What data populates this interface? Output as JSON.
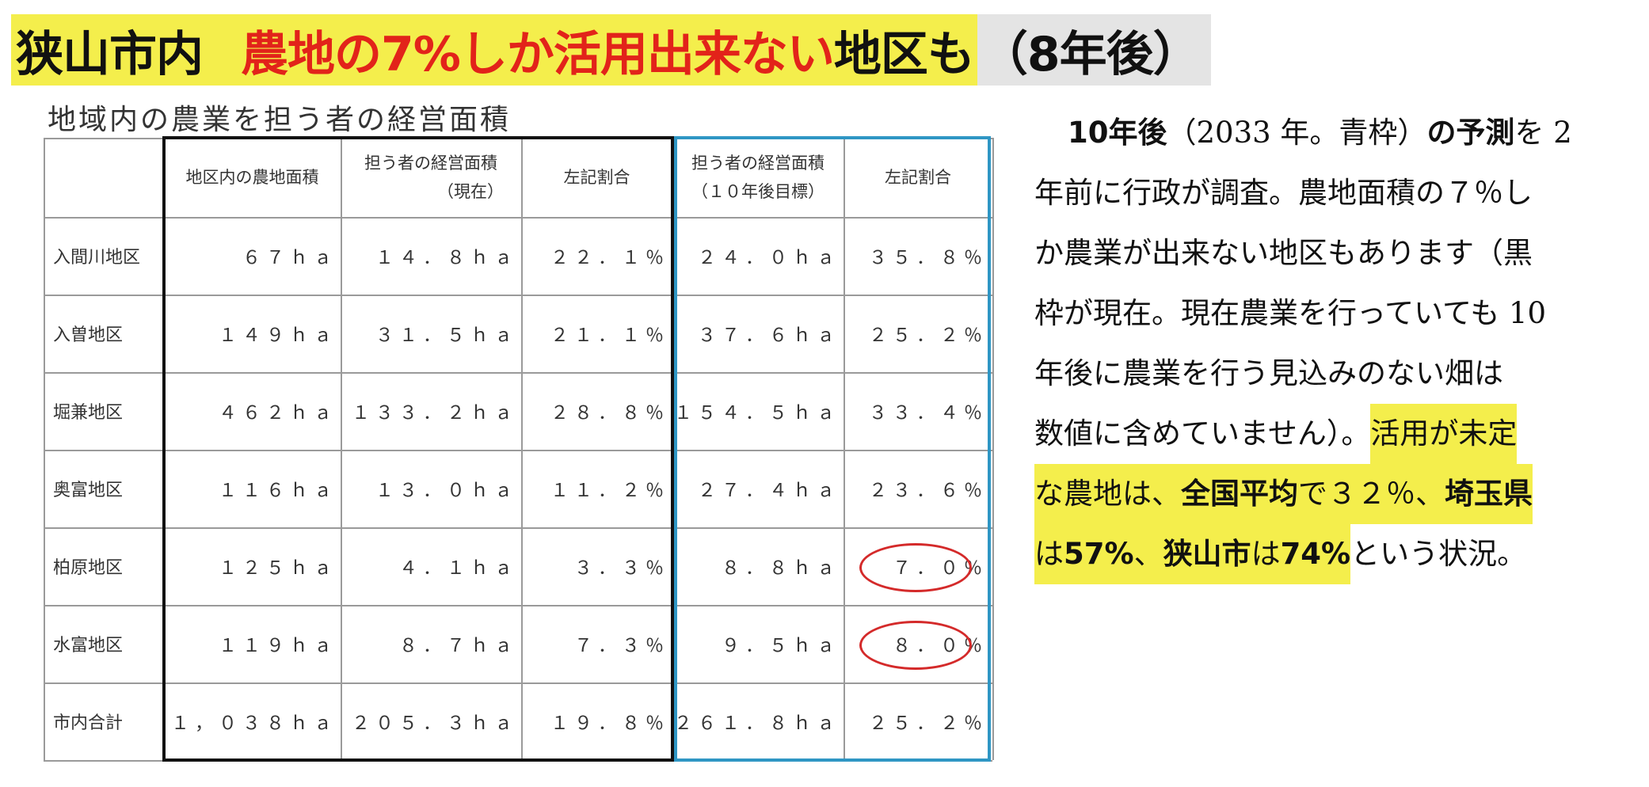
{
  "headline": {
    "part1": "狭山市内",
    "part2": "農地の7%しか活用出来ない",
    "part3": "地区も",
    "part4": "（8年後）",
    "colors": {
      "yellow": "#f4ee4c",
      "red": "#e2231a",
      "grey": "#e4e4e4"
    }
  },
  "table": {
    "title": "地域内の農業を担う者の経営面積",
    "headers": {
      "farmland": "地区内の農地面積",
      "current_area_line1": "担う者の経営面積",
      "current_area_line2": "（現在）",
      "current_ratio": "左記割合",
      "target_area_line1": "担う者の経営面積",
      "target_area_line2": "（１０年後目標）",
      "target_ratio": "左記割合"
    },
    "rows": [
      {
        "district": "入間川地区",
        "farmland": "６７ｈａ",
        "current_area": "１４．８ｈａ",
        "current_ratio": "２２．１％",
        "target_area": "２４．０ｈａ",
        "target_ratio": "３５．８％"
      },
      {
        "district": "入曽地区",
        "farmland": "１４９ｈａ",
        "current_area": "３１．５ｈａ",
        "current_ratio": "２１．１％",
        "target_area": "３７．６ｈａ",
        "target_ratio": "２５．２％"
      },
      {
        "district": "堀兼地区",
        "farmland": "４６２ｈａ",
        "current_area": "１３３．２ｈａ",
        "current_ratio": "２８．８％",
        "target_area": "１５４．５ｈａ",
        "target_ratio": "３３．４％"
      },
      {
        "district": "奥富地区",
        "farmland": "１１６ｈａ",
        "current_area": "１３．０ｈａ",
        "current_ratio": "１１．２％",
        "target_area": "２７．４ｈａ",
        "target_ratio": "２３．６％"
      },
      {
        "district": "柏原地区",
        "farmland": "１２５ｈａ",
        "current_area": "４．１ｈａ",
        "current_ratio": "３．３％",
        "target_area": "８．８ｈａ",
        "target_ratio": "７．０％"
      },
      {
        "district": "水富地区",
        "farmland": "１１９ｈａ",
        "current_area": "８．７ｈａ",
        "current_ratio": "７．３％",
        "target_area": "９．５ｈａ",
        "target_ratio": "８．０％"
      },
      {
        "district": "市内合計",
        "farmland": "１，０３８ｈａ",
        "current_area": "２０５．３ｈａ",
        "current_ratio": "１９．８％",
        "target_area": "２６１．８ｈａ",
        "target_ratio": "２５．２％"
      }
    ],
    "box_colors": {
      "current": "#111111",
      "target": "#2f96c4",
      "circle": "#d42a2a"
    }
  },
  "paragraph": {
    "l1a": "10年後",
    "l1b": "（2033 年。青枠）",
    "l1c": "の予測",
    "l1d": "を 2",
    "l2": "年前に行政が調査。農地面積の７％し",
    "l3": "か農業が出来ない地区もあります（黒",
    "l4": "枠が現在。現在農業を行っていても 10",
    "l5": "年後に農業を行う見込みのない畑は",
    "l6a": "数値に含めていません）。",
    "l6b": "活用が未定",
    "l7a": "な農地は、",
    "l7b": "全国平均",
    "l7c": "で３２％、",
    "l7d": "埼玉県",
    "l8a": "は",
    "l8b": "57%",
    "l8c": "、",
    "l8d": "狭山市",
    "l8e": "は",
    "l8f": "74%",
    "l8g": "という状況。"
  }
}
